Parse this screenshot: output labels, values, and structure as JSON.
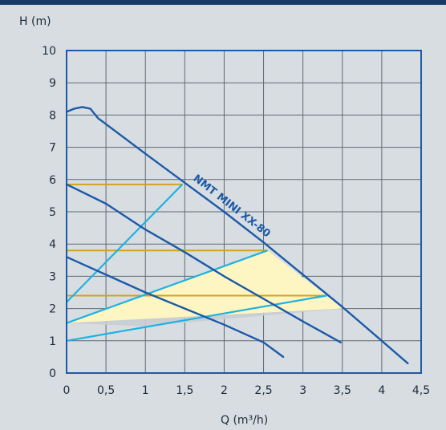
{
  "chart_data": {
    "type": "line",
    "title": "",
    "xlabel": "Q (m³/h)",
    "ylabel": "H (m)",
    "xlim": [
      0,
      4.5
    ],
    "ylim": [
      0,
      10
    ],
    "grid": true,
    "x_ticks": [
      {
        "value": 0,
        "label": "0"
      },
      {
        "value": 0.5,
        "label": "0,5"
      },
      {
        "value": 1,
        "label": "1"
      },
      {
        "value": 1.5,
        "label": "1,5"
      },
      {
        "value": 2,
        "label": "2"
      },
      {
        "value": 2.5,
        "label": "2,5"
      },
      {
        "value": 3,
        "label": "3"
      },
      {
        "value": 3.5,
        "label": "3,5"
      },
      {
        "value": 4,
        "label": "4"
      },
      {
        "value": 4.5,
        "label": "4,5"
      }
    ],
    "y_ticks": [
      {
        "value": 0,
        "label": "0"
      },
      {
        "value": 1,
        "label": "1"
      },
      {
        "value": 2,
        "label": "2"
      },
      {
        "value": 3,
        "label": "3"
      },
      {
        "value": 4,
        "label": "4"
      },
      {
        "value": 5,
        "label": "5"
      },
      {
        "value": 6,
        "label": "6"
      },
      {
        "value": 7,
        "label": "7"
      },
      {
        "value": 8,
        "label": "8"
      },
      {
        "value": 9,
        "label": "9"
      },
      {
        "value": 10,
        "label": "10"
      }
    ],
    "curve_label": "NMT MINI XX-80",
    "colors": {
      "pump_curve": "#1c5aa8",
      "system_curve": "#1fb2e0",
      "setpoint_line": "#d4a21c",
      "region_fill": "#fdf6c2",
      "region_grey": "#c9cdd2",
      "frame": "#1c5aa8",
      "grid": "#5e6a75"
    },
    "pump_curves": [
      {
        "points": [
          [
            0,
            8.1
          ],
          [
            0.1,
            8.2
          ],
          [
            0.2,
            8.25
          ],
          [
            0.3,
            8.2
          ],
          [
            0.4,
            7.9
          ],
          [
            1.0,
            6.8
          ],
          [
            1.5,
            5.9
          ],
          [
            2.0,
            5.0
          ],
          [
            2.5,
            4.05
          ],
          [
            3.0,
            3.05
          ],
          [
            3.5,
            2.05
          ],
          [
            4.0,
            1.0
          ],
          [
            4.33,
            0.3
          ]
        ]
      },
      {
        "points": [
          [
            0,
            5.85
          ],
          [
            0.5,
            5.25
          ],
          [
            1.0,
            4.45
          ],
          [
            1.5,
            3.75
          ],
          [
            2.0,
            3.0
          ],
          [
            2.5,
            2.3
          ],
          [
            3.0,
            1.6
          ],
          [
            3.48,
            0.95
          ]
        ]
      },
      {
        "points": [
          [
            0,
            3.6
          ],
          [
            0.5,
            3.05
          ],
          [
            1.0,
            2.5
          ],
          [
            1.5,
            2.0
          ],
          [
            2.0,
            1.5
          ],
          [
            2.5,
            0.95
          ],
          [
            2.75,
            0.5
          ]
        ]
      }
    ],
    "system_curves": [
      {
        "points": [
          [
            0,
            2.2
          ],
          [
            1.47,
            5.85
          ]
        ]
      },
      {
        "points": [
          [
            0,
            1.55
          ],
          [
            2.55,
            3.8
          ]
        ]
      },
      {
        "points": [
          [
            0,
            1.0
          ],
          [
            3.3,
            2.4
          ]
        ]
      }
    ],
    "setpoint_lines": [
      {
        "y": 5.85,
        "x_end": 1.47
      },
      {
        "y": 3.8,
        "x_end": 2.55
      },
      {
        "y": 2.4,
        "x_end": 3.3
      }
    ],
    "operating_region": [
      [
        0,
        1.55
      ],
      [
        2.55,
        3.8
      ],
      [
        3.3,
        2.4
      ],
      [
        3.5,
        2.0
      ],
      [
        0,
        1.55
      ]
    ],
    "grey_region": [
      [
        0,
        1.55
      ],
      [
        0,
        1.55
      ],
      [
        3.5,
        2.0
      ],
      [
        1.0,
        1.45
      ]
    ]
  }
}
